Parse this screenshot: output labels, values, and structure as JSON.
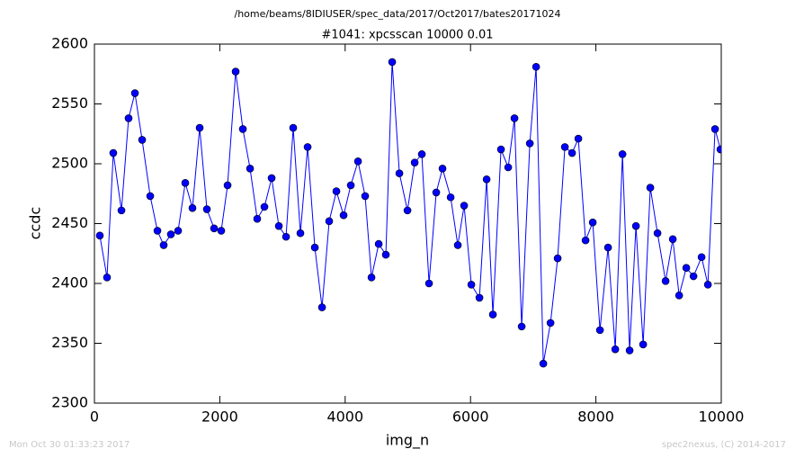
{
  "chart_data": {
    "type": "line",
    "suptitle": "/home/beams/8IDIUSER/spec_data/2017/Oct2017/bates20171024",
    "title": "#1041: xpcsscan 10000 0.01",
    "xlabel": "img_n",
    "ylabel": "ccdc",
    "footer_left": "Mon Oct 30 01:33:23 2017",
    "footer_right": "spec2nexus, (C) 2014-2017",
    "xlim": [
      0,
      10000
    ],
    "xticks": [
      0,
      2000,
      4000,
      6000,
      8000,
      10000
    ],
    "ylim": [
      2300,
      2600
    ],
    "yticks": [
      2300,
      2350,
      2400,
      2450,
      2500,
      2550,
      2600
    ],
    "x": [
      86,
      201,
      301,
      431,
      545,
      646,
      761,
      890,
      1005,
      1105,
      1220,
      1335,
      1449,
      1564,
      1679,
      1794,
      1909,
      2023,
      2124,
      2253,
      2368,
      2483,
      2597,
      2712,
      2827,
      2942,
      3057,
      3171,
      3286,
      3401,
      3516,
      3631,
      3745,
      3860,
      3975,
      4090,
      4205,
      4319,
      4420,
      4535,
      4649,
      4750,
      4865,
      4994,
      5109,
      5223,
      5338,
      5453,
      5553,
      5683,
      5797,
      5898,
      6013,
      6142,
      6257,
      6357,
      6486,
      6601,
      6701,
      6816,
      6946,
      7046,
      7161,
      7276,
      7390,
      7505,
      7620,
      7720,
      7835,
      7950,
      8065,
      8194,
      8309,
      8424,
      8538,
      8639,
      8754,
      8868,
      8983,
      9112,
      9227,
      9328,
      9442,
      9557,
      9686,
      9787,
      9901,
      9987
    ],
    "series": [
      {
        "name": "ccdc",
        "color": "#0000ff",
        "values": [
          2440,
          2405,
          2509,
          2461,
          2538,
          2559,
          2520,
          2473,
          2444,
          2432,
          2441,
          2444,
          2484,
          2463,
          2530,
          2462,
          2446,
          2444,
          2482,
          2577,
          2529,
          2496,
          2454,
          2464,
          2488,
          2448,
          2439,
          2530,
          2442,
          2514,
          2430,
          2380,
          2452,
          2477,
          2457,
          2482,
          2502,
          2473,
          2405,
          2433,
          2424,
          2585,
          2492,
          2461,
          2501,
          2508,
          2400,
          2476,
          2496,
          2472,
          2432,
          2465,
          2399,
          2388,
          2487,
          2374,
          2512,
          2497,
          2538,
          2364,
          2517,
          2581,
          2333,
          2367,
          2421,
          2514,
          2509,
          2521,
          2436,
          2451,
          2361,
          2430,
          2345,
          2508,
          2344,
          2448,
          2349,
          2480,
          2442,
          2402,
          2437,
          2390,
          2413,
          2406,
          2422,
          2399,
          2529,
          2512
        ]
      }
    ]
  }
}
